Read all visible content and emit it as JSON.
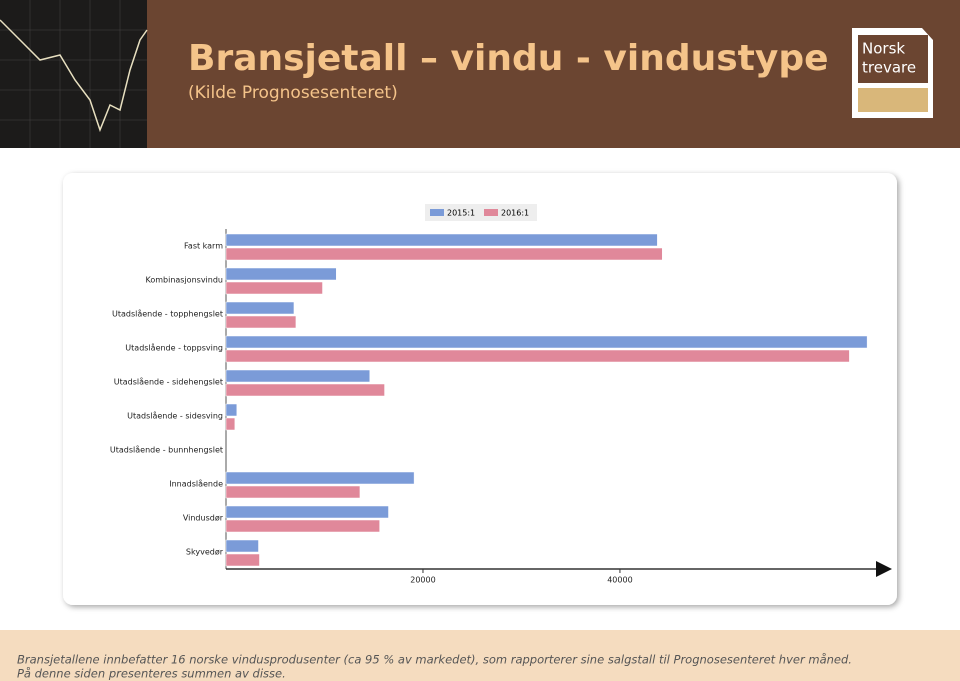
{
  "header": {
    "title": "Bransjetall – vindu - vindustype",
    "subtitle": "(Kilde Prognosesenteret)",
    "logo": [
      "Norsk",
      "trevare"
    ]
  },
  "chart_data": {
    "type": "hbar",
    "categories": [
      "Fast karm",
      "Kombinasjonsvindu",
      "Utadslående - topphengslet",
      "Utadslående - toppsving",
      "Utadslående - sidehengslet",
      "Utadslående - sidesving",
      "Utadslående - bunnhengslet",
      "Innadslående",
      "Vindusdør",
      "Skyvedør"
    ],
    "series": [
      {
        "name": "2015:1",
        "color": "#7b9bd8",
        "values": [
          43800,
          11200,
          6900,
          65100,
          14600,
          1100,
          0,
          19100,
          16500,
          3300
        ]
      },
      {
        "name": "2016:1",
        "color": "#e0889a",
        "values": [
          44300,
          9800,
          7100,
          63300,
          16100,
          900,
          0,
          13600,
          15600,
          3400
        ]
      }
    ],
    "xlim": [
      0,
      66000
    ],
    "xticks": [
      20000,
      40000
    ],
    "legend": "top"
  },
  "footer": [
    "Bransjetallene innbefatter 16 norske vindusprodusenter (ca 95 % av markedet), som rapporterer sine salgstall til Prognosesenteret hver måned.",
    "På denne siden presenteres summen av disse."
  ]
}
